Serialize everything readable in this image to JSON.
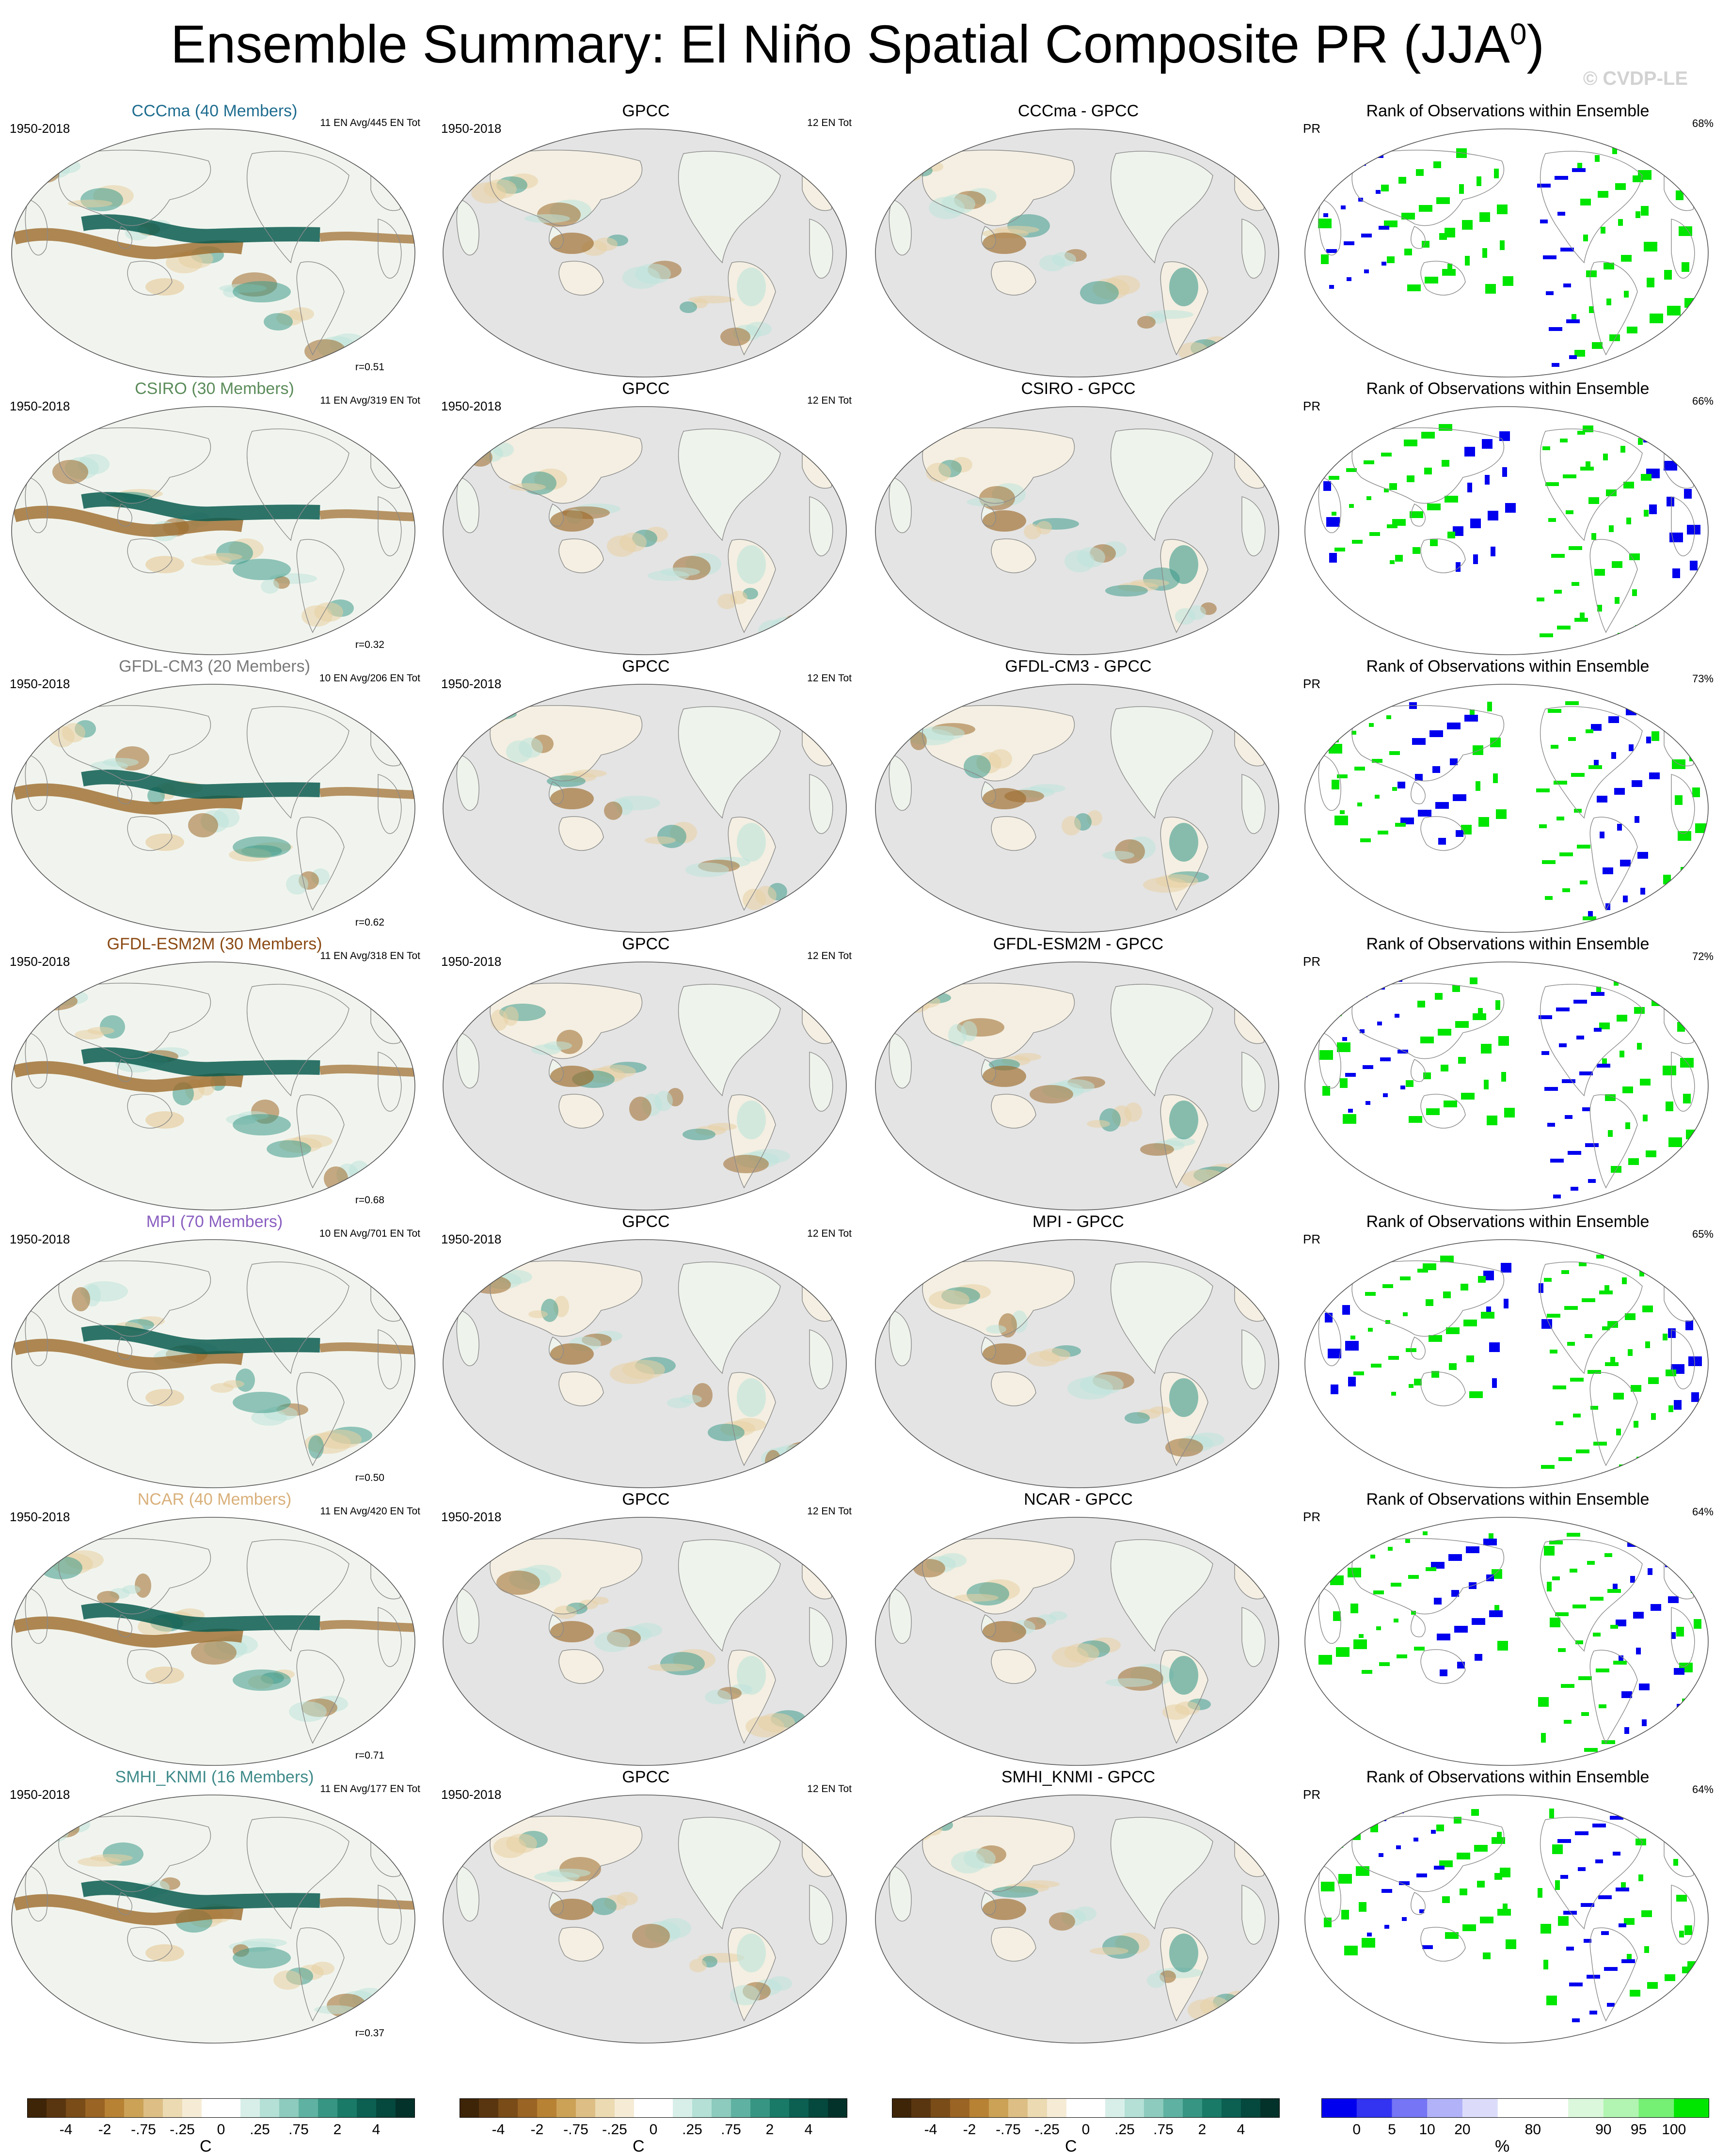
{
  "title": "Ensemble Summary: El Niño Spatial Composite PR (JJA",
  "title_sup": "0",
  "title_close": ")",
  "watermark": "© CVDP-LE",
  "colors": {
    "ocean_bg": "#f1f4ee",
    "land_gray": "#e4e4e4",
    "coast": "#8a8a8a",
    "brown_dark": "#5a3a10",
    "brown_mid": "#9c6a2a",
    "brown_light": "#e7cfa3",
    "teal_light": "#bde3da",
    "teal_mid": "#3e9a8a",
    "teal_dark": "#0a5c50",
    "rank_blue": "#0000ee",
    "rank_green": "#00e600"
  },
  "rows": [
    {
      "model": "CCCma (40 Members)",
      "model_short": "CCCma",
      "model_color": "#1f6d8f",
      "period": "1950-2018",
      "en_info": "11 EN Avg/445 EN Tot",
      "corr": "r=0.51",
      "obs": "GPCC",
      "obs_period": "1950-2018",
      "obs_info": "12 EN Tot",
      "diff_title": "CCCma - GPCC",
      "rank_title": "Rank of Observations within Ensemble",
      "rank_var": "PR",
      "rank_pct": "68%"
    },
    {
      "model": "CSIRO (30 Members)",
      "model_short": "CSIRO",
      "model_color": "#5b8c5a",
      "period": "1950-2018",
      "en_info": "11 EN Avg/319 EN Tot",
      "corr": "r=0.32",
      "obs": "GPCC",
      "obs_period": "1950-2018",
      "obs_info": "12 EN Tot",
      "diff_title": "CSIRO - GPCC",
      "rank_title": "Rank of Observations within Ensemble",
      "rank_var": "PR",
      "rank_pct": "66%"
    },
    {
      "model": "GFDL-CM3 (20 Members)",
      "model_short": "GFDL-CM3",
      "model_color": "#7a7a7a",
      "period": "1950-2018",
      "en_info": "10 EN Avg/206 EN Tot",
      "corr": "r=0.62",
      "obs": "GPCC",
      "obs_period": "1950-2018",
      "obs_info": "12 EN Tot",
      "diff_title": "GFDL-CM3 - GPCC",
      "rank_title": "Rank of Observations within Ensemble",
      "rank_var": "PR",
      "rank_pct": "73%"
    },
    {
      "model": "GFDL-ESM2M (30 Members)",
      "model_short": "GFDL-ESM2M",
      "model_color": "#8b4a14",
      "period": "1950-2018",
      "en_info": "11 EN Avg/318 EN Tot",
      "corr": "r=0.68",
      "obs": "GPCC",
      "obs_period": "1950-2018",
      "obs_info": "12 EN Tot",
      "diff_title": "GFDL-ESM2M - GPCC",
      "rank_title": "Rank of Observations within Ensemble",
      "rank_var": "PR",
      "rank_pct": "72%"
    },
    {
      "model": "MPI (70 Members)",
      "model_short": "MPI",
      "model_color": "#8a5fc0",
      "period": "1950-2018",
      "en_info": "10 EN Avg/701 EN Tot",
      "corr": "r=0.50",
      "obs": "GPCC",
      "obs_period": "1950-2018",
      "obs_info": "12 EN Tot",
      "diff_title": "MPI - GPCC",
      "rank_title": "Rank of Observations within Ensemble",
      "rank_var": "PR",
      "rank_pct": "65%"
    },
    {
      "model": "NCAR (40 Members)",
      "model_short": "NCAR",
      "model_color": "#d9b07a",
      "period": "1950-2018",
      "en_info": "11 EN Avg/420 EN Tot",
      "corr": "r=0.71",
      "obs": "GPCC",
      "obs_period": "1950-2018",
      "obs_info": "12 EN Tot",
      "diff_title": "NCAR - GPCC",
      "rank_title": "Rank of Observations within Ensemble",
      "rank_var": "PR",
      "rank_pct": "64%"
    },
    {
      "model": "SMHI_KNMI (16 Members)",
      "model_short": "SMHI_KNMI",
      "model_color": "#3f8a8a",
      "period": "1950-2018",
      "en_info": "11 EN Avg/177 EN Tot",
      "corr": "r=0.37",
      "obs": "GPCC",
      "obs_period": "1950-2018",
      "obs_info": "12 EN Tot",
      "diff_title": "SMHI_KNMI - GPCC",
      "rank_title": "Rank of Observations within Ensemble",
      "rank_var": "PR",
      "rank_pct": "64%"
    }
  ],
  "colorbar_anom": {
    "colors": [
      "#3e2508",
      "#5a3610",
      "#7a4c18",
      "#9a6424",
      "#b88234",
      "#cca257",
      "#ddbf85",
      "#ecdab2",
      "#f6ecd6",
      "#ffffff",
      "#ffffff",
      "#d8efe9",
      "#b4e0d6",
      "#8ccbbd",
      "#5fb2a1",
      "#379683",
      "#1a7a68",
      "#0b6052",
      "#05483d",
      "#03322a"
    ],
    "ticks": [
      "-4",
      "-2",
      "-.75",
      "-.25",
      "0",
      ".25",
      ".75",
      "2",
      "4"
    ],
    "unit": "C"
  },
  "colorbar_rank": {
    "colors": [
      "#0000ee",
      "#3333f2",
      "#7575f5",
      "#b2b2f8",
      "#dcdcfa",
      "#ffffff",
      "#ffffff",
      "#dcf8dc",
      "#b2f5b2",
      "#75f075",
      "#00e600"
    ],
    "ticks": [
      "0",
      "5",
      "10",
      "20",
      "80",
      "90",
      "95",
      "100"
    ],
    "unit": "%"
  }
}
